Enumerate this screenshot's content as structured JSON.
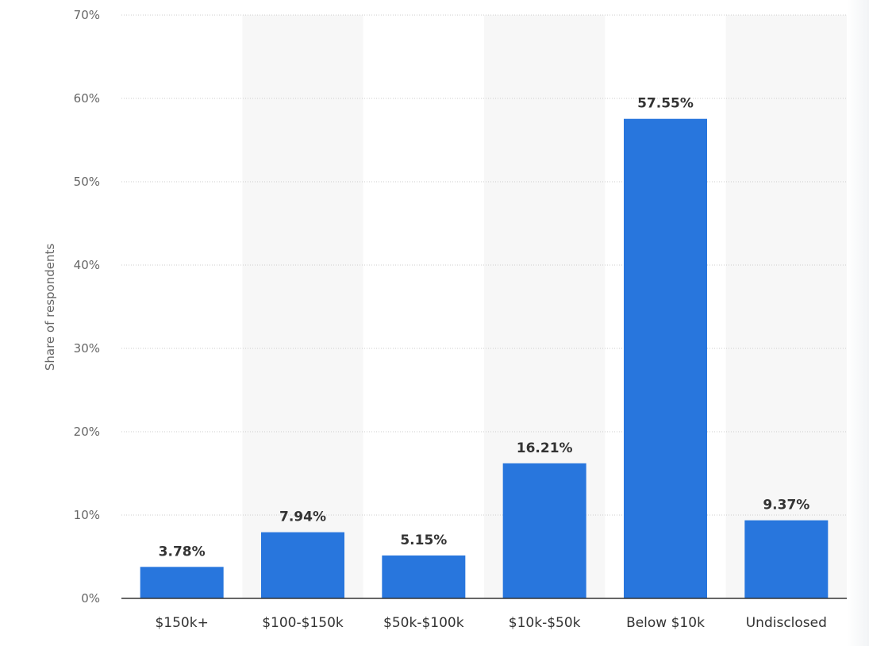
{
  "chart_data": {
    "type": "bar",
    "categories": [
      "$150k+",
      "$100-$150k",
      "$50k-$100k",
      "$10k-$50k",
      "Below $10k",
      "Undisclosed"
    ],
    "values": [
      3.78,
      7.94,
      5.15,
      16.21,
      57.55,
      9.37
    ],
    "data_labels": [
      "3.78%",
      "7.94%",
      "5.15%",
      "16.21%",
      "57.55%",
      "9.37%"
    ],
    "ylabel": "Share of respondents",
    "ylim": [
      0,
      70
    ],
    "yticks": [
      0,
      10,
      20,
      30,
      40,
      50,
      60,
      70
    ],
    "ytick_labels": [
      "0%",
      "10%",
      "20%",
      "30%",
      "40%",
      "50%",
      "60%",
      "70%"
    ],
    "grid": true,
    "colors": {
      "bar": "#2876dd",
      "band": "#f7f7f7",
      "grid": "#cccccc",
      "axis": "#333333"
    }
  }
}
